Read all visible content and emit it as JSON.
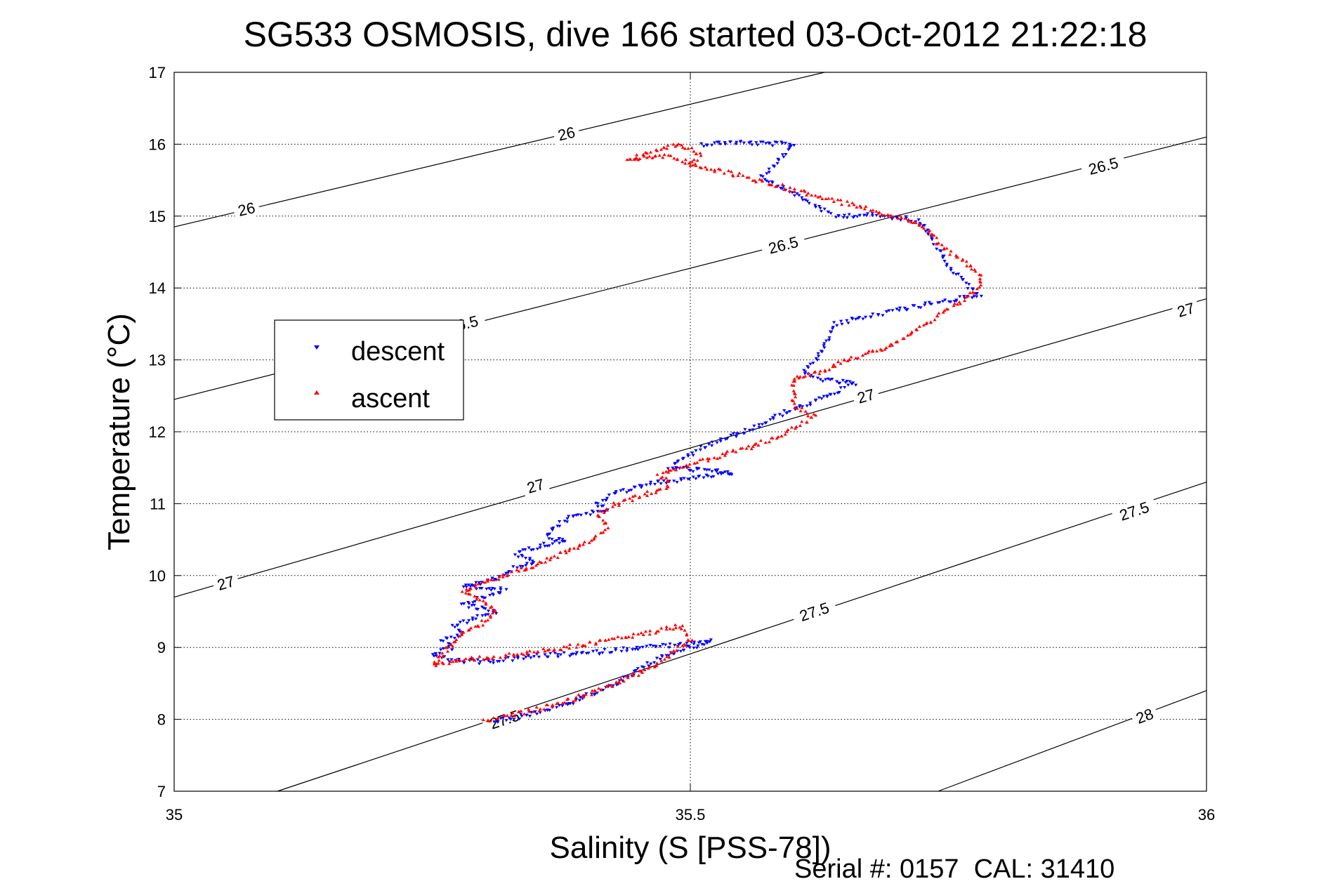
{
  "chart_data": {
    "type": "scatter",
    "title": "SG533 OSMOSIS, dive 166 started 03-Oct-2012 21:22:18",
    "xlabel": "Salinity (S [PSS-78])",
    "ylabel": "Temperature (°C)",
    "xlim": [
      35,
      36
    ],
    "ylim": [
      7,
      17
    ],
    "x_ticks": [
      35,
      35.5,
      36
    ],
    "x_tick_labels": [
      "35",
      "35.5",
      "36"
    ],
    "y_ticks": [
      7,
      8,
      9,
      10,
      11,
      12,
      13,
      14,
      15,
      16,
      17
    ],
    "y_tick_labels": [
      "7",
      "8",
      "9",
      "10",
      "11",
      "12",
      "13",
      "14",
      "15",
      "16",
      "17"
    ],
    "grid": true,
    "legend_position": "left-middle",
    "series": [
      {
        "name": "descent",
        "marker": "triangle-down",
        "color": "#0000ff",
        "path": [
          [
            35.51,
            16.0
          ],
          [
            35.54,
            16.03
          ],
          [
            35.57,
            16.01
          ],
          [
            35.6,
            16.0
          ],
          [
            35.57,
            15.55
          ],
          [
            35.64,
            15.0
          ],
          [
            35.67,
            15.02
          ],
          [
            35.72,
            14.95
          ],
          [
            35.73,
            14.8
          ],
          [
            35.75,
            14.3
          ],
          [
            35.78,
            13.9
          ],
          [
            35.72,
            13.75
          ],
          [
            35.64,
            13.5
          ],
          [
            35.63,
            13.2
          ],
          [
            35.62,
            13.0
          ],
          [
            35.61,
            12.8
          ],
          [
            35.63,
            12.72
          ],
          [
            35.66,
            12.67
          ],
          [
            35.64,
            12.55
          ],
          [
            35.62,
            12.42
          ],
          [
            35.59,
            12.27
          ],
          [
            35.57,
            12.1
          ],
          [
            35.54,
            11.95
          ],
          [
            35.51,
            11.78
          ],
          [
            35.49,
            11.6
          ],
          [
            35.48,
            11.5
          ],
          [
            35.51,
            11.47
          ],
          [
            35.54,
            11.43
          ],
          [
            35.5,
            11.35
          ],
          [
            35.46,
            11.28
          ],
          [
            35.43,
            11.15
          ],
          [
            35.41,
            11.0
          ],
          [
            35.42,
            10.9
          ],
          [
            35.39,
            10.85
          ],
          [
            35.37,
            10.7
          ],
          [
            35.36,
            10.55
          ],
          [
            35.38,
            10.48
          ],
          [
            35.35,
            10.4
          ],
          [
            35.33,
            10.3
          ],
          [
            35.35,
            10.2
          ],
          [
            35.33,
            10.1
          ],
          [
            35.31,
            9.95
          ],
          [
            35.28,
            9.85
          ],
          [
            35.32,
            9.8
          ],
          [
            35.3,
            9.7
          ],
          [
            35.28,
            9.6
          ],
          [
            35.31,
            9.5
          ],
          [
            35.29,
            9.4
          ],
          [
            35.27,
            9.3
          ],
          [
            35.28,
            9.2
          ],
          [
            35.26,
            9.1
          ],
          [
            35.27,
            9.0
          ],
          [
            35.25,
            8.9
          ],
          [
            35.27,
            8.82
          ],
          [
            35.3,
            8.8
          ],
          [
            35.35,
            8.88
          ],
          [
            35.4,
            8.92
          ],
          [
            35.45,
            9.0
          ],
          [
            35.5,
            9.05
          ],
          [
            35.52,
            9.08
          ],
          [
            35.5,
            9.0
          ],
          [
            35.48,
            8.92
          ],
          [
            35.46,
            8.78
          ],
          [
            35.44,
            8.6
          ],
          [
            35.42,
            8.45
          ],
          [
            35.38,
            8.2
          ],
          [
            35.34,
            8.05
          ],
          [
            35.31,
            7.97
          ]
        ]
      },
      {
        "name": "ascent",
        "marker": "triangle-up",
        "color": "#ff0000",
        "path": [
          [
            35.3,
            7.97
          ],
          [
            35.34,
            8.1
          ],
          [
            35.38,
            8.25
          ],
          [
            35.42,
            8.45
          ],
          [
            35.46,
            8.7
          ],
          [
            35.48,
            8.9
          ],
          [
            35.5,
            9.1
          ],
          [
            35.49,
            9.3
          ],
          [
            35.46,
            9.2
          ],
          [
            35.42,
            9.1
          ],
          [
            35.38,
            9.0
          ],
          [
            35.33,
            8.9
          ],
          [
            35.28,
            8.82
          ],
          [
            35.25,
            8.75
          ],
          [
            35.26,
            8.9
          ],
          [
            35.27,
            9.05
          ],
          [
            35.28,
            9.2
          ],
          [
            35.3,
            9.35
          ],
          [
            35.31,
            9.5
          ],
          [
            35.3,
            9.65
          ],
          [
            35.28,
            9.75
          ],
          [
            35.3,
            9.9
          ],
          [
            35.33,
            10.05
          ],
          [
            35.36,
            10.2
          ],
          [
            35.39,
            10.4
          ],
          [
            35.41,
            10.55
          ],
          [
            35.42,
            10.7
          ],
          [
            35.41,
            10.85
          ],
          [
            35.43,
            11.0
          ],
          [
            35.45,
            11.1
          ],
          [
            35.48,
            11.25
          ],
          [
            35.47,
            11.42
          ],
          [
            35.49,
            11.5
          ],
          [
            35.52,
            11.62
          ],
          [
            35.55,
            11.75
          ],
          [
            35.58,
            11.9
          ],
          [
            35.6,
            12.05
          ],
          [
            35.62,
            12.2
          ],
          [
            35.6,
            12.38
          ],
          [
            35.6,
            12.55
          ],
          [
            35.6,
            12.75
          ],
          [
            35.63,
            12.85
          ],
          [
            35.65,
            13.0
          ],
          [
            35.68,
            13.12
          ],
          [
            35.7,
            13.25
          ],
          [
            35.72,
            13.42
          ],
          [
            35.74,
            13.6
          ],
          [
            35.76,
            13.8
          ],
          [
            35.78,
            14.0
          ],
          [
            35.78,
            14.2
          ],
          [
            35.76,
            14.42
          ],
          [
            35.74,
            14.62
          ],
          [
            35.73,
            14.82
          ],
          [
            35.71,
            14.95
          ],
          [
            35.47,
            15.85
          ],
          [
            35.44,
            15.78
          ],
          [
            35.49,
            16.0
          ],
          [
            35.51,
            15.85
          ],
          [
            35.5,
            15.7
          ]
        ]
      }
    ],
    "density_contours": [
      {
        "level": 26,
        "label": "26",
        "points": [
          [
            35.0,
            14.85
          ],
          [
            35.63,
            17.0
          ]
        ],
        "label_positions": [
          [
            35.07,
            15.1
          ],
          [
            35.38,
            16.15
          ]
        ]
      },
      {
        "level": 26.5,
        "label": "26.5",
        "points": [
          [
            35.0,
            12.45
          ],
          [
            36.0,
            16.1
          ]
        ],
        "label_positions": [
          [
            35.28,
            13.5
          ],
          [
            35.59,
            14.6
          ],
          [
            35.9,
            15.7
          ]
        ]
      },
      {
        "level": 27,
        "label": "27",
        "points": [
          [
            35.0,
            9.7
          ],
          [
            36.0,
            13.85
          ]
        ],
        "label_positions": [
          [
            35.05,
            9.9
          ],
          [
            35.35,
            11.25
          ],
          [
            35.67,
            12.5
          ],
          [
            35.98,
            13.7
          ]
        ]
      },
      {
        "level": 27.5,
        "label": "27.5",
        "points": [
          [
            35.1,
            7.0
          ],
          [
            36.0,
            11.3
          ]
        ],
        "label_positions": [
          [
            35.32,
            8.0
          ],
          [
            35.62,
            9.5
          ],
          [
            35.93,
            10.9
          ]
        ]
      },
      {
        "level": 28,
        "label": "28",
        "points": [
          [
            35.74,
            7.0
          ],
          [
            36.0,
            8.4
          ]
        ],
        "label_positions": [
          [
            35.94,
            8.05
          ]
        ]
      }
    ]
  },
  "legend": {
    "items": [
      {
        "label": "descent",
        "marker": "triangle-down",
        "color": "#0000ff"
      },
      {
        "label": "ascent",
        "marker": "triangle-up",
        "color": "#ff0000"
      }
    ]
  },
  "footer": {
    "serial_text": "Serial #: 0157  CAL: 31410"
  }
}
